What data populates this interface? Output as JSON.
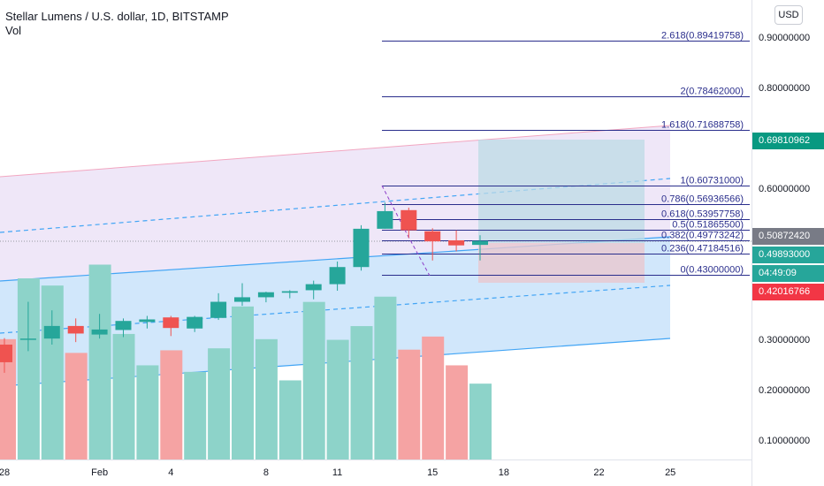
{
  "header": {
    "title": "Stellar Lumens / U.S. dollar, 1D, BITSTAMP",
    "volume_label": "Vol"
  },
  "currency_button": "USD",
  "price_axis": {
    "ticks": [
      "0.90000000",
      "0.80000000",
      "0.60000000",
      "0.30000000",
      "0.20000000",
      "0.10000000"
    ],
    "tick_values": [
      0.9,
      0.8,
      0.6,
      0.3,
      0.2,
      0.1
    ]
  },
  "price_labels": [
    {
      "text": "0.69810962",
      "value": 0.69810962,
      "color": "#089981"
    },
    {
      "text": "0.50872420",
      "value": 0.5087242,
      "color": "#787b86"
    },
    {
      "text": "0.49893000",
      "value": 0.49893,
      "color": "#26a69a"
    },
    {
      "text": "04:49:09",
      "value": 0.4615,
      "color": "#26a69a"
    },
    {
      "text": "0.42016766",
      "value": 0.42016766,
      "color": "#f23645"
    }
  ],
  "time_axis": {
    "ticks": [
      {
        "label": "28",
        "day": -10
      },
      {
        "label": "Feb",
        "day": -6
      },
      {
        "label": "4",
        "day": -3
      },
      {
        "label": "8",
        "day": 1
      },
      {
        "label": "11",
        "day": 4
      },
      {
        "label": "15",
        "day": 8
      },
      {
        "label": "18",
        "day": 11
      },
      {
        "label": "22",
        "day": 15
      },
      {
        "label": "25",
        "day": 18
      }
    ]
  },
  "fibonacci": {
    "levels": [
      {
        "label": "2.618(0.89419758)",
        "ratio": 2.618,
        "price": 0.89419758
      },
      {
        "label": "2(0.78462000)",
        "ratio": 2,
        "price": 0.78462
      },
      {
        "label": "1.618(0.71688758)",
        "ratio": 1.618,
        "price": 0.71688758
      },
      {
        "label": "1(0.60731000)",
        "ratio": 1,
        "price": 0.60731
      },
      {
        "label": "0.786(0.56936566)",
        "ratio": 0.786,
        "price": 0.56936566
      },
      {
        "label": "0.618(0.53957758)",
        "ratio": 0.618,
        "price": 0.53957758
      },
      {
        "label": "0.5(0.51865500)",
        "ratio": 0.5,
        "price": 0.518655
      },
      {
        "label": "0.382(0.49773242)",
        "ratio": 0.382,
        "price": 0.49773242
      },
      {
        "label": "0.236(0.47184516)",
        "ratio": 0.236,
        "price": 0.47184516
      },
      {
        "label": "0(0.43000000)",
        "ratio": 0,
        "price": 0.43
      }
    ],
    "line_color": "#2a2e8c"
  },
  "colors": {
    "up": "#26a69a",
    "down": "#ef5350",
    "vol_up": "#8dd3c9",
    "vol_down": "#f5a3a3",
    "channel_upper_fill": "#ede4f7",
    "channel_lower_fill": "#cfe6fb",
    "channel_line": "#42a5f5",
    "channel_top_line": "#f2a6c0",
    "target_box": "#bcdbe6",
    "stop_box": "#e8c8cf"
  },
  "chart_data": {
    "type": "candlestick",
    "symbol": "Stellar Lumens / U.S. dollar",
    "interval": "1D",
    "exchange": "BITSTAMP",
    "candles": [
      {
        "day": -10,
        "open": 0.293,
        "high": 0.306,
        "low": 0.237,
        "close": 0.258,
        "volume": 0.184
      },
      {
        "day": -9,
        "open": 0.304,
        "high": 0.378,
        "low": 0.28,
        "close": 0.305,
        "volume": 0.277
      },
      {
        "day": -8,
        "open": 0.305,
        "high": 0.361,
        "low": 0.293,
        "close": 0.33,
        "volume": 0.266
      },
      {
        "day": -7,
        "open": 0.33,
        "high": 0.345,
        "low": 0.298,
        "close": 0.315,
        "volume": 0.163
      },
      {
        "day": -6,
        "open": 0.313,
        "high": 0.354,
        "low": 0.305,
        "close": 0.323,
        "volume": 0.298
      },
      {
        "day": -5,
        "open": 0.322,
        "high": 0.345,
        "low": 0.308,
        "close": 0.34,
        "volume": 0.192
      },
      {
        "day": -4,
        "open": 0.338,
        "high": 0.35,
        "low": 0.325,
        "close": 0.343,
        "volume": 0.144
      },
      {
        "day": -3,
        "open": 0.347,
        "high": 0.35,
        "low": 0.31,
        "close": 0.326,
        "volume": 0.167
      },
      {
        "day": -2,
        "open": 0.325,
        "high": 0.35,
        "low": 0.318,
        "close": 0.348,
        "volume": 0.134
      },
      {
        "day": -1,
        "open": 0.346,
        "high": 0.395,
        "low": 0.342,
        "close": 0.378,
        "volume": 0.17
      },
      {
        "day": 0,
        "open": 0.378,
        "high": 0.415,
        "low": 0.37,
        "close": 0.387,
        "volume": 0.234
      },
      {
        "day": 1,
        "open": 0.387,
        "high": 0.398,
        "low": 0.377,
        "close": 0.397,
        "volume": 0.184
      },
      {
        "day": 2,
        "open": 0.396,
        "high": 0.401,
        "low": 0.385,
        "close": 0.399,
        "volume": 0.121
      },
      {
        "day": 3,
        "open": 0.401,
        "high": 0.42,
        "low": 0.383,
        "close": 0.413,
        "volume": 0.241
      },
      {
        "day": 4,
        "open": 0.413,
        "high": 0.458,
        "low": 0.4,
        "close": 0.447,
        "volume": 0.183
      },
      {
        "day": 5,
        "open": 0.447,
        "high": 0.53,
        "low": 0.44,
        "close": 0.523,
        "volume": 0.204
      },
      {
        "day": 6,
        "open": 0.523,
        "high": 0.575,
        "low": 0.523,
        "close": 0.558,
        "volume": 0.249
      },
      {
        "day": 7,
        "open": 0.56,
        "high": 0.565,
        "low": 0.505,
        "close": 0.52,
        "volume": 0.168
      },
      {
        "day": 8,
        "open": 0.518,
        "high": 0.524,
        "low": 0.46,
        "close": 0.498,
        "volume": 0.188
      },
      {
        "day": 9,
        "open": 0.5,
        "high": 0.52,
        "low": 0.478,
        "close": 0.49,
        "volume": 0.144
      },
      {
        "day": 10,
        "open": 0.491,
        "high": 0.51,
        "low": 0.46,
        "close": 0.499,
        "volume": 0.116
      }
    ],
    "ylim": [
      0.055,
      0.94
    ],
    "xlim": [
      -10.7,
      21.8
    ]
  }
}
